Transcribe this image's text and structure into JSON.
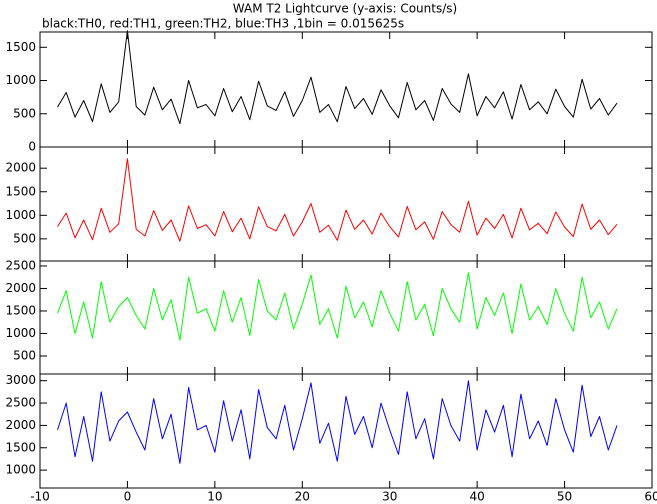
{
  "chart_data": [
    {
      "type": "line",
      "title": "WAM T2 Lightcurve (y-axis: Counts/s)",
      "subtitle": "black:TH0, red:TH1, green:TH2, blue:TH3 ,1bin = 0.015625s",
      "xlim": [
        -10,
        60
      ],
      "ylim": [
        0,
        1730
      ],
      "yticks": [
        0,
        500,
        1000,
        1500
      ],
      "x": [
        -8,
        -7,
        -6,
        -5,
        -4,
        -3,
        -2,
        -1,
        0,
        1,
        2,
        3,
        4,
        5,
        6,
        7,
        8,
        9,
        10,
        11,
        12,
        13,
        14,
        15,
        16,
        17,
        18,
        19,
        20,
        21,
        22,
        23,
        24,
        25,
        26,
        27,
        28,
        29,
        30,
        31,
        32,
        33,
        34,
        35,
        36,
        37,
        38,
        39,
        40,
        41,
        42,
        43,
        44,
        45,
        46,
        47,
        48,
        49,
        50,
        51,
        52,
        53,
        54,
        55,
        56
      ],
      "series": [
        {
          "color": "#000000",
          "values": [
            600,
            820,
            450,
            700,
            380,
            950,
            520,
            680,
            1750,
            610,
            480,
            900,
            560,
            720,
            350,
            1000,
            590,
            640,
            470,
            880,
            530,
            760,
            410,
            990,
            620,
            550,
            830,
            460,
            700,
            1050,
            520,
            640,
            380,
            910,
            580,
            730,
            490,
            860,
            620,
            440,
            970,
            560,
            700,
            400,
            880,
            650,
            520,
            1100,
            470,
            760,
            590,
            830,
            420,
            940,
            560,
            680,
            500,
            870,
            610,
            450,
            1020,
            570,
            730,
            480,
            660
          ]
        }
      ]
    },
    {
      "type": "line",
      "xlim": [
        -10,
        60
      ],
      "ylim": [
        30,
        2450
      ],
      "yticks": [
        500,
        1000,
        1500,
        2000
      ],
      "x": [
        -8,
        -7,
        -6,
        -5,
        -4,
        -3,
        -2,
        -1,
        0,
        1,
        2,
        3,
        4,
        5,
        6,
        7,
        8,
        9,
        10,
        11,
        12,
        13,
        14,
        15,
        16,
        17,
        18,
        19,
        20,
        21,
        22,
        23,
        24,
        25,
        26,
        27,
        28,
        29,
        30,
        31,
        32,
        33,
        34,
        35,
        36,
        37,
        38,
        39,
        40,
        41,
        42,
        43,
        44,
        45,
        46,
        47,
        48,
        49,
        50,
        51,
        52,
        53,
        54,
        55,
        56
      ],
      "series": [
        {
          "color": "#ff0000",
          "values": [
            760,
            1050,
            520,
            900,
            480,
            1150,
            640,
            820,
            2200,
            700,
            560,
            1100,
            680,
            900,
            450,
            1200,
            720,
            800,
            560,
            1080,
            650,
            940,
            500,
            1180,
            760,
            670,
            1020,
            560,
            860,
            1250,
            640,
            790,
            470,
            1110,
            700,
            900,
            600,
            1050,
            760,
            540,
            1190,
            690,
            860,
            490,
            1080,
            800,
            640,
            1300,
            580,
            940,
            720,
            1020,
            520,
            1150,
            690,
            830,
            610,
            1070,
            750,
            550,
            1240,
            700,
            900,
            590,
            810
          ]
        }
      ]
    },
    {
      "type": "line",
      "xlim": [
        -10,
        60
      ],
      "ylim": [
        100,
        2610
      ],
      "yticks": [
        500,
        1000,
        1500,
        2000,
        2500
      ],
      "x": [
        -8,
        -7,
        -6,
        -5,
        -4,
        -3,
        -2,
        -1,
        0,
        1,
        2,
        3,
        4,
        5,
        6,
        7,
        8,
        9,
        10,
        11,
        12,
        13,
        14,
        15,
        16,
        17,
        18,
        19,
        20,
        21,
        22,
        23,
        24,
        25,
        26,
        27,
        28,
        29,
        30,
        31,
        32,
        33,
        34,
        35,
        36,
        37,
        38,
        39,
        40,
        41,
        42,
        43,
        44,
        45,
        46,
        47,
        48,
        49,
        50,
        51,
        52,
        53,
        54,
        55,
        56
      ],
      "series": [
        {
          "color": "#00ff00",
          "values": [
            1450,
            1950,
            1000,
            1700,
            900,
            2150,
            1250,
            1600,
            1800,
            1400,
            1100,
            2000,
            1300,
            1750,
            850,
            2250,
            1450,
            1550,
            1050,
            1950,
            1250,
            1800,
            950,
            2200,
            1500,
            1300,
            1900,
            1100,
            1650,
            2300,
            1200,
            1550,
            900,
            2050,
            1350,
            1700,
            1150,
            1950,
            1450,
            1050,
            2150,
            1300,
            1650,
            950,
            2000,
            1550,
            1250,
            2350,
            1100,
            1800,
            1400,
            1900,
            1000,
            2100,
            1300,
            1600,
            1200,
            2000,
            1450,
            1050,
            2250,
            1350,
            1700,
            1100,
            1550
          ]
        }
      ]
    },
    {
      "type": "line",
      "xlim": [
        -10,
        60
      ],
      "ylim": [
        600,
        3150
      ],
      "yticks": [
        1000,
        1500,
        2000,
        2500,
        3000
      ],
      "xticks": [
        -10,
        0,
        10,
        20,
        30,
        40,
        50,
        60
      ],
      "x": [
        -8,
        -7,
        -6,
        -5,
        -4,
        -3,
        -2,
        -1,
        0,
        1,
        2,
        3,
        4,
        5,
        6,
        7,
        8,
        9,
        10,
        11,
        12,
        13,
        14,
        15,
        16,
        17,
        18,
        19,
        20,
        21,
        22,
        23,
        24,
        25,
        26,
        27,
        28,
        29,
        30,
        31,
        32,
        33,
        34,
        35,
        36,
        37,
        38,
        39,
        40,
        41,
        42,
        43,
        44,
        45,
        46,
        47,
        48,
        49,
        50,
        51,
        52,
        53,
        54,
        55,
        56
      ],
      "series": [
        {
          "color": "#0000ff",
          "values": [
            1900,
            2500,
            1300,
            2200,
            1200,
            2750,
            1650,
            2100,
            2300,
            1850,
            1450,
            2600,
            1700,
            2250,
            1150,
            2850,
            1900,
            2000,
            1400,
            2550,
            1650,
            2350,
            1250,
            2800,
            1950,
            1700,
            2450,
            1450,
            2150,
            2950,
            1600,
            2050,
            1200,
            2650,
            1800,
            2200,
            1500,
            2500,
            1900,
            1350,
            2750,
            1700,
            2150,
            1250,
            2600,
            2000,
            1650,
            3000,
            1450,
            2350,
            1850,
            2450,
            1300,
            2700,
            1700,
            2100,
            1550,
            2600,
            1900,
            1400,
            2900,
            1750,
            2200,
            1450,
            2000
          ]
        }
      ]
    }
  ]
}
